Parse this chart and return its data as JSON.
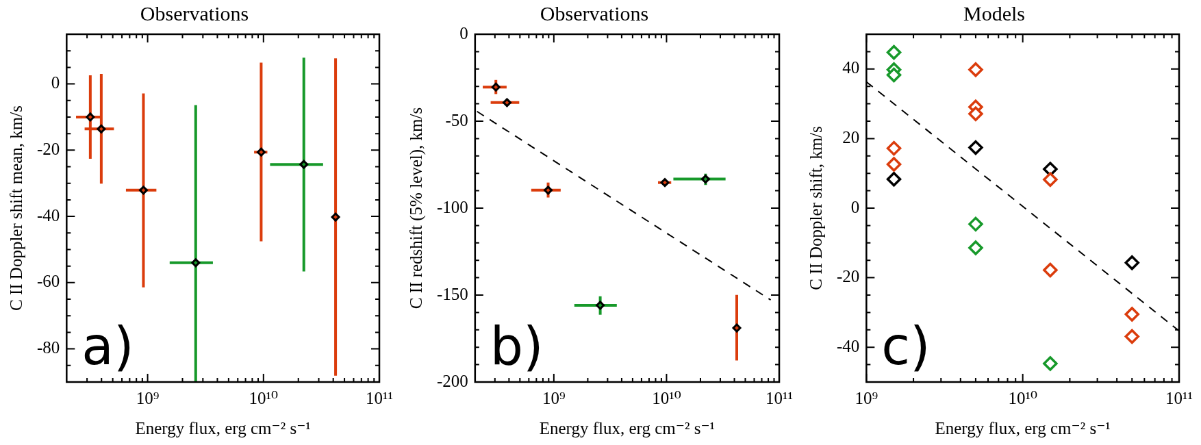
{
  "chart_data": [
    {
      "type": "scatter",
      "title": "Observations",
      "xlabel": "Energy flux, erg cm⁻² s⁻¹",
      "ylabel": "C II Doppler shift mean, km/s",
      "log": "x",
      "marker": "diamond",
      "xlim": [
        200000000.0,
        100000000000.0
      ],
      "ylim": [
        -90,
        15
      ],
      "xticks": [
        {
          "value": 300000000.0,
          "label": null
        },
        {
          "value": 400000000.0,
          "label": null
        },
        {
          "value": 500000000.0,
          "label": null
        },
        {
          "value": 600000000.0,
          "label": null
        },
        {
          "value": 700000000.0,
          "label": null
        },
        {
          "value": 800000000.0,
          "label": null
        },
        {
          "value": 900000000.0,
          "label": null
        },
        {
          "value": 1000000000.0,
          "label": "10⁹"
        },
        {
          "value": 2000000000.0,
          "label": null
        },
        {
          "value": 3000000000.0,
          "label": null
        },
        {
          "value": 4000000000.0,
          "label": null
        },
        {
          "value": 5000000000.0,
          "label": null
        },
        {
          "value": 6000000000.0,
          "label": null
        },
        {
          "value": 7000000000.0,
          "label": null
        },
        {
          "value": 8000000000.0,
          "label": null
        },
        {
          "value": 9000000000.0,
          "label": null
        },
        {
          "value": 10000000000.0,
          "label": "10¹⁰"
        },
        {
          "value": 20000000000.0,
          "label": null
        },
        {
          "value": 30000000000.0,
          "label": null
        },
        {
          "value": 40000000000.0,
          "label": null
        },
        {
          "value": 50000000000.0,
          "label": null
        },
        {
          "value": 60000000000.0,
          "label": null
        },
        {
          "value": 70000000000.0,
          "label": null
        },
        {
          "value": 80000000000.0,
          "label": null
        },
        {
          "value": 90000000000.0,
          "label": null
        },
        {
          "value": 100000000000.0,
          "label": "10¹¹"
        }
      ],
      "yticks": [
        -80,
        -60,
        -40,
        -20,
        0,
        {
          "value": -85,
          "label": null
        },
        {
          "value": -75,
          "label": null
        },
        {
          "value": -70,
          "label": null
        },
        {
          "value": -65,
          "label": null
        },
        {
          "value": -55,
          "label": null
        },
        {
          "value": -50,
          "label": null
        },
        {
          "value": -45,
          "label": null
        },
        {
          "value": -35,
          "label": null
        },
        {
          "value": -30,
          "label": null
        },
        {
          "value": -25,
          "label": null
        },
        {
          "value": -15,
          "label": null
        },
        {
          "value": -10,
          "label": null
        },
        {
          "value": -5,
          "label": null
        },
        {
          "value": 5,
          "label": null
        },
        {
          "value": 10,
          "label": null
        }
      ],
      "annotations": [
        "a)"
      ],
      "series": [
        {
          "color": "#db3c0c",
          "x": [
            320000000.0,
            398000000.0,
            920000000.0,
            9550000000.0,
            41900000000.0
          ],
          "values": [
            -10.0,
            -13.6,
            -32.1,
            -20.6,
            -40.2
          ],
          "errors": [
            [
              -22.6,
              2.6
            ],
            [
              -30.1,
              3.0
            ],
            [
              -61.4,
              -2.9
            ],
            [
              -47.5,
              6.4
            ],
            [
              -88.1,
              7.7
            ]
          ],
          "xerrors": [
            [
              241000000.0,
              392000000.0
            ],
            [
              286000000.0,
              512000000.0
            ],
            [
              650000000.0,
              1190000000.0
            ],
            [
              8300000000.0,
              10800000000.0
            ],
            null
          ]
        },
        {
          "color": "#17992a",
          "x": [
            2600000000.0,
            22300000000.0
          ],
          "values": [
            -54.0,
            -24.3
          ],
          "errors": [
            [
              -90,
              -6.4
            ],
            [
              -56.6,
              7.9
            ]
          ],
          "xerrors": [
            [
              1550000000.0,
              3660000000.0
            ],
            [
              11400000000.0,
              32700000000.0
            ]
          ]
        }
      ]
    },
    {
      "type": "scatter",
      "title": "Observations",
      "xlabel": "Energy flux, erg cm⁻² s⁻¹",
      "ylabel": "C II redshift (5% level), km/s",
      "log": "x",
      "marker": "diamond",
      "xlim": [
        200000000.0,
        100000000000.0
      ],
      "ylim": [
        -200,
        0
      ],
      "xticks": [
        {
          "value": 300000000.0,
          "label": null
        },
        {
          "value": 400000000.0,
          "label": null
        },
        {
          "value": 500000000.0,
          "label": null
        },
        {
          "value": 600000000.0,
          "label": null
        },
        {
          "value": 700000000.0,
          "label": null
        },
        {
          "value": 800000000.0,
          "label": null
        },
        {
          "value": 900000000.0,
          "label": null
        },
        {
          "value": 1000000000.0,
          "label": "10⁹"
        },
        {
          "value": 2000000000.0,
          "label": null
        },
        {
          "value": 3000000000.0,
          "label": null
        },
        {
          "value": 4000000000.0,
          "label": null
        },
        {
          "value": 5000000000.0,
          "label": null
        },
        {
          "value": 6000000000.0,
          "label": null
        },
        {
          "value": 7000000000.0,
          "label": null
        },
        {
          "value": 8000000000.0,
          "label": null
        },
        {
          "value": 9000000000.0,
          "label": null
        },
        {
          "value": 10000000000.0,
          "label": "10¹⁰"
        },
        {
          "value": 20000000000.0,
          "label": null
        },
        {
          "value": 30000000000.0,
          "label": null
        },
        {
          "value": 40000000000.0,
          "label": null
        },
        {
          "value": 50000000000.0,
          "label": null
        },
        {
          "value": 60000000000.0,
          "label": null
        },
        {
          "value": 70000000000.0,
          "label": null
        },
        {
          "value": 80000000000.0,
          "label": null
        },
        {
          "value": 90000000000.0,
          "label": null
        },
        {
          "value": 100000000000.0,
          "label": "10¹¹"
        }
      ],
      "yticks": [
        -200,
        -150,
        -100,
        -50,
        0,
        {
          "value": -190,
          "label": null
        },
        {
          "value": -180,
          "label": null
        },
        {
          "value": -170,
          "label": null
        },
        {
          "value": -160,
          "label": null
        },
        {
          "value": -140,
          "label": null
        },
        {
          "value": -130,
          "label": null
        },
        {
          "value": -120,
          "label": null
        },
        {
          "value": -110,
          "label": null
        },
        {
          "value": -90,
          "label": null
        },
        {
          "value": -80,
          "label": null
        },
        {
          "value": -70,
          "label": null
        },
        {
          "value": -60,
          "label": null
        },
        {
          "value": -40,
          "label": null
        },
        {
          "value": -30,
          "label": null
        },
        {
          "value": -20,
          "label": null
        },
        {
          "value": -10,
          "label": null
        }
      ],
      "annotations": [
        "b)"
      ],
      "series": [
        {
          "color": "#db3c0c",
          "x": [
            306000000.0,
            384000000.0,
            890000000.0,
            9670000000.0,
            42000000000.0
          ],
          "values": [
            -30.4,
            -39.3,
            -89.7,
            -85.3,
            -168.9
          ],
          "errors": [
            [
              -34.4,
              -26.3
            ],
            null,
            [
              -93.9,
              -85.3
            ],
            null,
            [
              -187.6,
              -149.9
            ]
          ],
          "xerrors": [
            [
              234000000.0,
              381000000.0
            ],
            [
              275000000.0,
              493000000.0
            ],
            [
              630000000.0,
              1150000000.0
            ],
            [
              8400000000.0,
              11000000000.0
            ],
            null
          ]
        },
        {
          "color": "#17992a",
          "x": [
            2580000000.0,
            22200000000.0
          ],
          "values": [
            -155.9,
            -83.3
          ],
          "errors": [
            [
              -161.3,
              -150.7
            ],
            [
              -86.7,
              -80.2
            ]
          ],
          "xerrors": [
            [
              1520000000.0,
              3620000000.0
            ],
            [
              11500000000.0,
              33400000000.0
            ]
          ]
        },
        {
          "type": "line",
          "line_style": "dashed",
          "marker": "none",
          "color": "#000000",
          "x": [
            208000000.0,
            84000000000.0
          ],
          "values": [
            -44.4,
            -152.8
          ]
        }
      ]
    },
    {
      "type": "scatter",
      "title": "Models",
      "xlabel": "Energy flux, erg cm⁻² s⁻¹",
      "ylabel": "C II Doppler shift, km/s",
      "log": "x",
      "marker": "diamond",
      "xlim": [
        1000000000.0,
        100000000000.0
      ],
      "ylim": [
        -50,
        50
      ],
      "xticks": [
        {
          "value": 1000000000.0,
          "label": "10⁹"
        },
        {
          "value": 2000000000.0,
          "label": null
        },
        {
          "value": 3000000000.0,
          "label": null
        },
        {
          "value": 4000000000.0,
          "label": null
        },
        {
          "value": 5000000000.0,
          "label": null
        },
        {
          "value": 6000000000.0,
          "label": null
        },
        {
          "value": 7000000000.0,
          "label": null
        },
        {
          "value": 8000000000.0,
          "label": null
        },
        {
          "value": 9000000000.0,
          "label": null
        },
        {
          "value": 10000000000.0,
          "label": "10¹⁰"
        },
        {
          "value": 20000000000.0,
          "label": null
        },
        {
          "value": 30000000000.0,
          "label": null
        },
        {
          "value": 40000000000.0,
          "label": null
        },
        {
          "value": 50000000000.0,
          "label": null
        },
        {
          "value": 60000000000.0,
          "label": null
        },
        {
          "value": 70000000000.0,
          "label": null
        },
        {
          "value": 80000000000.0,
          "label": null
        },
        {
          "value": 90000000000.0,
          "label": null
        },
        {
          "value": 100000000000.0,
          "label": "10¹¹"
        }
      ],
      "yticks": [
        -40,
        -20,
        0,
        20,
        40,
        {
          "value": -45,
          "label": null
        },
        {
          "value": -35,
          "label": null
        },
        {
          "value": -30,
          "label": null
        },
        {
          "value": -25,
          "label": null
        },
        {
          "value": -15,
          "label": null
        },
        {
          "value": -10,
          "label": null
        },
        {
          "value": -5,
          "label": null
        },
        {
          "value": 5,
          "label": null
        },
        {
          "value": 10,
          "label": null
        },
        {
          "value": 15,
          "label": null
        },
        {
          "value": 25,
          "label": null
        },
        {
          "value": 30,
          "label": null
        },
        {
          "value": 35,
          "label": null
        },
        {
          "value": 45,
          "label": null
        }
      ],
      "annotations": [
        "c)"
      ],
      "series": [
        {
          "color": "#17992a",
          "x": [
            1500000000.0,
            1500000000.0,
            1500000000.0,
            5000000000.0,
            5000000000.0,
            15000000000.0
          ],
          "values": [
            44.8,
            39.8,
            38.3,
            -4.6,
            -11.4,
            -44.7
          ]
        },
        {
          "color": "#db3c0c",
          "x": [
            1500000000.0,
            1500000000.0,
            5000000000.0,
            5000000000.0,
            5000000000.0,
            15000000000.0,
            15000000000.0,
            50000000000.0,
            50000000000.0
          ],
          "values": [
            17.2,
            12.6,
            39.8,
            29.1,
            27.1,
            8.2,
            -17.8,
            -30.5,
            -36.9
          ]
        },
        {
          "color": "#000000",
          "x": [
            1500000000.0,
            5000000000.0,
            15000000000.0,
            50000000000.0
          ],
          "values": [
            8.3,
            17.4,
            11.2,
            -15.7
          ]
        },
        {
          "type": "line",
          "line_style": "dashed",
          "marker": "none",
          "color": "#000000",
          "x": [
            1000000000.0,
            100000000000.0
          ],
          "values": [
            36.3,
            -35.3
          ]
        }
      ]
    }
  ]
}
